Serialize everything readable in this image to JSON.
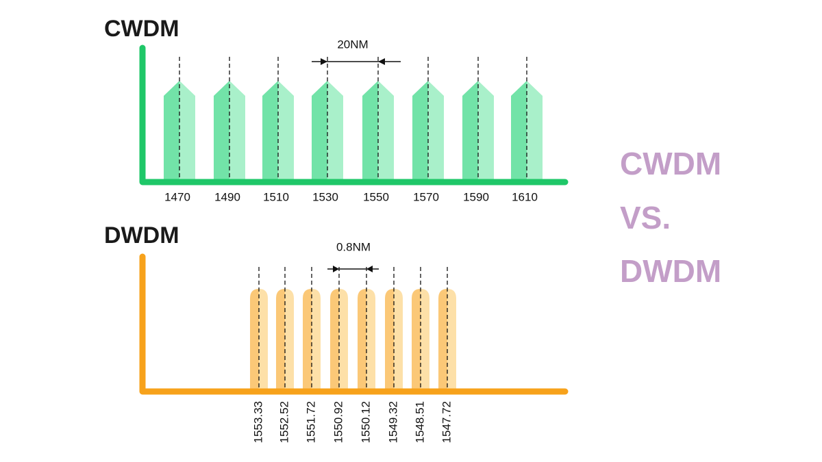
{
  "cwdm": {
    "title": "CWDM",
    "spacing": "20NM",
    "channels": [
      "1470",
      "1490",
      "1510",
      "1530",
      "1550",
      "1570",
      "1590",
      "1610"
    ]
  },
  "dwdm": {
    "title": "DWDM",
    "spacing": "0.8NM",
    "channels": [
      "1553.33",
      "1552.52",
      "1551.72",
      "1550.92",
      "1550.12",
      "1549.32",
      "1548.51",
      "1547.72"
    ]
  },
  "side_title": [
    "CWDM",
    "VS.",
    "DWDM"
  ]
}
